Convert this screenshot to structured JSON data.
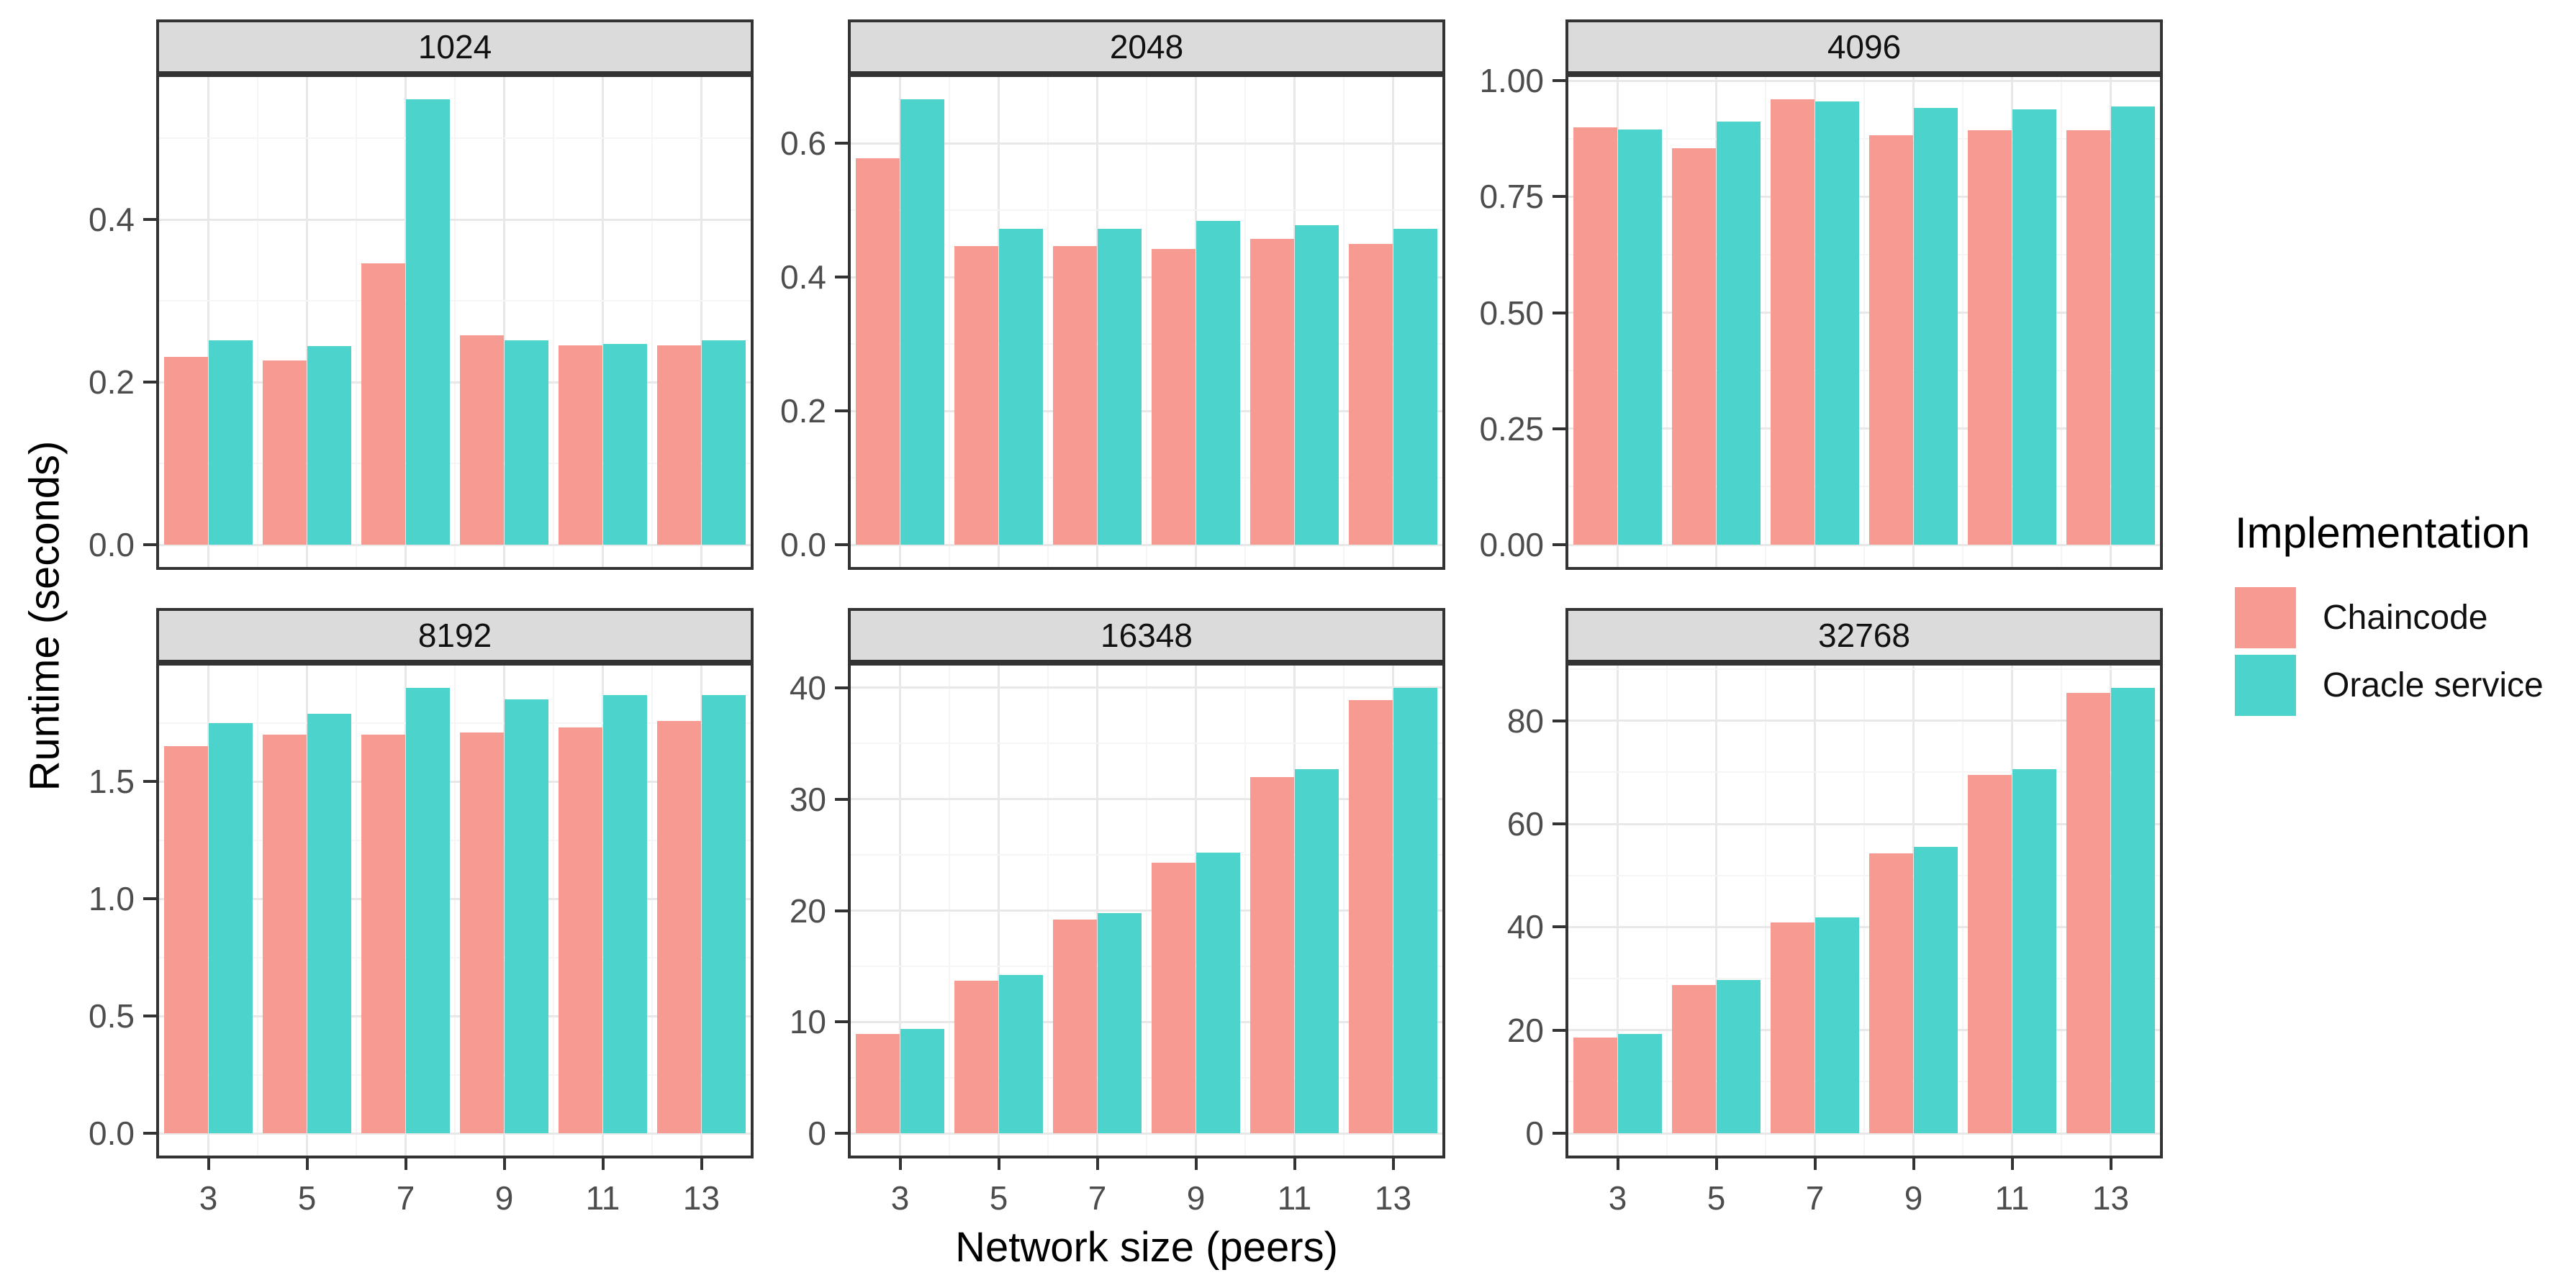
{
  "figure": {
    "ylabel": "Runtime (seconds)",
    "xlabel": "Network size (peers)"
  },
  "legend": {
    "title": "Implementation",
    "items": [
      {
        "label": "Chaincode",
        "color": "#F79B92"
      },
      {
        "label": "Oracle service",
        "color": "#4BD3CC"
      }
    ]
  },
  "chart_data": {
    "type": "bar",
    "title": "",
    "xlabel": "Network size (peers)",
    "ylabel": "Runtime (seconds)",
    "legend_title": "Implementation",
    "legend_position": "right",
    "grid": "major and minor, light gray on white, black panel border (faceted ggplot style)",
    "categories": [
      "3",
      "5",
      "7",
      "9",
      "11",
      "13"
    ],
    "series_names": [
      "Chaincode",
      "Oracle service"
    ],
    "series_colors": [
      "#F79B92",
      "#4BD3CC"
    ],
    "facet_layout": {
      "rows": 2,
      "cols": 3,
      "scales": "free_y"
    },
    "facets": [
      {
        "label": "1024",
        "row": 0,
        "col": 0,
        "ytick_values": [
          0,
          0.2,
          0.4
        ],
        "ytick_labels": [
          "0.0",
          "0.2",
          "0.4"
        ],
        "ymax_data": 0.548,
        "series": [
          [
            0.231,
            0.227,
            0.346,
            0.258,
            0.245,
            0.245
          ],
          [
            0.251,
            0.244,
            0.548,
            0.251,
            0.247,
            0.251
          ]
        ]
      },
      {
        "label": "2048",
        "row": 0,
        "col": 1,
        "ytick_values": [
          0,
          0.2,
          0.4,
          0.6
        ],
        "ytick_labels": [
          "0.0",
          "0.2",
          "0.4",
          "0.6"
        ],
        "ymax_data": 0.666,
        "series": [
          [
            0.578,
            0.446,
            0.446,
            0.442,
            0.457,
            0.45
          ],
          [
            0.666,
            0.472,
            0.472,
            0.484,
            0.478,
            0.472
          ]
        ]
      },
      {
        "label": "4096",
        "row": 0,
        "col": 2,
        "ytick_values": [
          0,
          0.25,
          0.5,
          0.75,
          1.0
        ],
        "ytick_labels": [
          "0.00",
          "0.25",
          "0.50",
          "0.75",
          "1.00"
        ],
        "ymax_data": 0.96,
        "series": [
          [
            0.9,
            0.855,
            0.96,
            0.882,
            0.893,
            0.893
          ],
          [
            0.895,
            0.912,
            0.956,
            0.942,
            0.938,
            0.944
          ]
        ]
      },
      {
        "label": "8192",
        "row": 1,
        "col": 0,
        "ytick_values": [
          0,
          0.5,
          1.0,
          1.5
        ],
        "ytick_labels": [
          "0.0",
          "0.5",
          "1.0",
          "1.5"
        ],
        "ymax_data": 1.9,
        "series": [
          [
            1.65,
            1.7,
            1.7,
            1.71,
            1.73,
            1.76
          ],
          [
            1.75,
            1.79,
            1.9,
            1.85,
            1.87,
            1.87
          ]
        ]
      },
      {
        "label": "16348",
        "row": 1,
        "col": 1,
        "ytick_values": [
          0,
          10,
          20,
          30,
          40
        ],
        "ytick_labels": [
          "0",
          "10",
          "20",
          "30",
          "40"
        ],
        "ymax_data": 40.0,
        "series": [
          [
            8.9,
            13.7,
            19.2,
            24.3,
            32.0,
            38.9
          ],
          [
            9.4,
            14.2,
            19.8,
            25.2,
            32.7,
            40.0
          ]
        ]
      },
      {
        "label": "32768",
        "row": 1,
        "col": 2,
        "ytick_values": [
          0,
          20,
          40,
          60,
          80
        ],
        "ytick_labels": [
          "0",
          "20",
          "40",
          "60",
          "80"
        ],
        "ymax_data": 86.4,
        "series": [
          [
            18.6,
            28.7,
            40.9,
            54.3,
            69.5,
            85.4
          ],
          [
            19.3,
            29.7,
            41.9,
            55.6,
            70.6,
            86.4
          ]
        ]
      }
    ]
  }
}
